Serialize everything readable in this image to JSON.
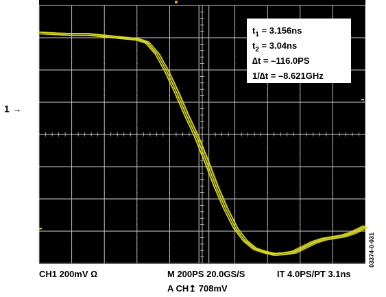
{
  "chart_data": {
    "type": "line",
    "title": "",
    "xlabel": "",
    "ylabel": "",
    "grid": true,
    "divisions": {
      "x": 10,
      "y": 8
    },
    "xlim": [
      0,
      10
    ],
    "ylim": [
      -4,
      4
    ],
    "series": [
      {
        "color": "#e3e32a",
        "x": [
          0,
          0.5,
          1,
          1.5,
          2,
          2.5,
          3,
          3.3,
          3.6,
          3.9,
          4.2,
          4.5,
          4.8,
          5.1,
          5.4,
          5.7,
          6.0,
          6.3,
          6.6,
          6.9,
          7.2,
          7.5,
          7.8,
          8.1,
          8.4,
          8.7,
          9.0,
          9.3,
          9.6,
          10
        ],
        "y": [
          3.15,
          3.12,
          3.1,
          3.1,
          3.05,
          3.0,
          2.95,
          2.85,
          2.5,
          1.95,
          1.3,
          0.6,
          -0.05,
          -0.8,
          -1.6,
          -2.3,
          -2.9,
          -3.3,
          -3.55,
          -3.65,
          -3.72,
          -3.7,
          -3.65,
          -3.5,
          -3.35,
          -3.25,
          -3.2,
          -3.15,
          -3.05,
          -2.85
        ]
      }
    ],
    "channel_marker": {
      "label": "1 →",
      "level": 0.8
    },
    "trigger_level": 0,
    "cursors_x": [
      4.9,
      5.2
    ]
  },
  "measurements": [
    {
      "name": "t",
      "sub": "1",
      "value": " = 3.156ns"
    },
    {
      "name": "t",
      "sub": "2",
      "value": " = 3.04ns"
    },
    {
      "name": "∆t",
      "sub": "",
      "value": " = –116.0PS"
    },
    {
      "name": "1/∆t",
      "sub": "",
      "value": " = –8.621GHz"
    }
  ],
  "bottom": {
    "ch1": "CH1  200mV  Ω",
    "timebase": "M 200PS  20.0GS/S",
    "interp": "IT 4.0PS/PT 3.1ns",
    "trigger": "A CH↥        708mV"
  },
  "side_id": "03374-0-031",
  "colors": {
    "screen": "#000000",
    "grid": "#cfcfcf",
    "trace": "#e3e32a",
    "cursor": "#9a9a9a"
  }
}
